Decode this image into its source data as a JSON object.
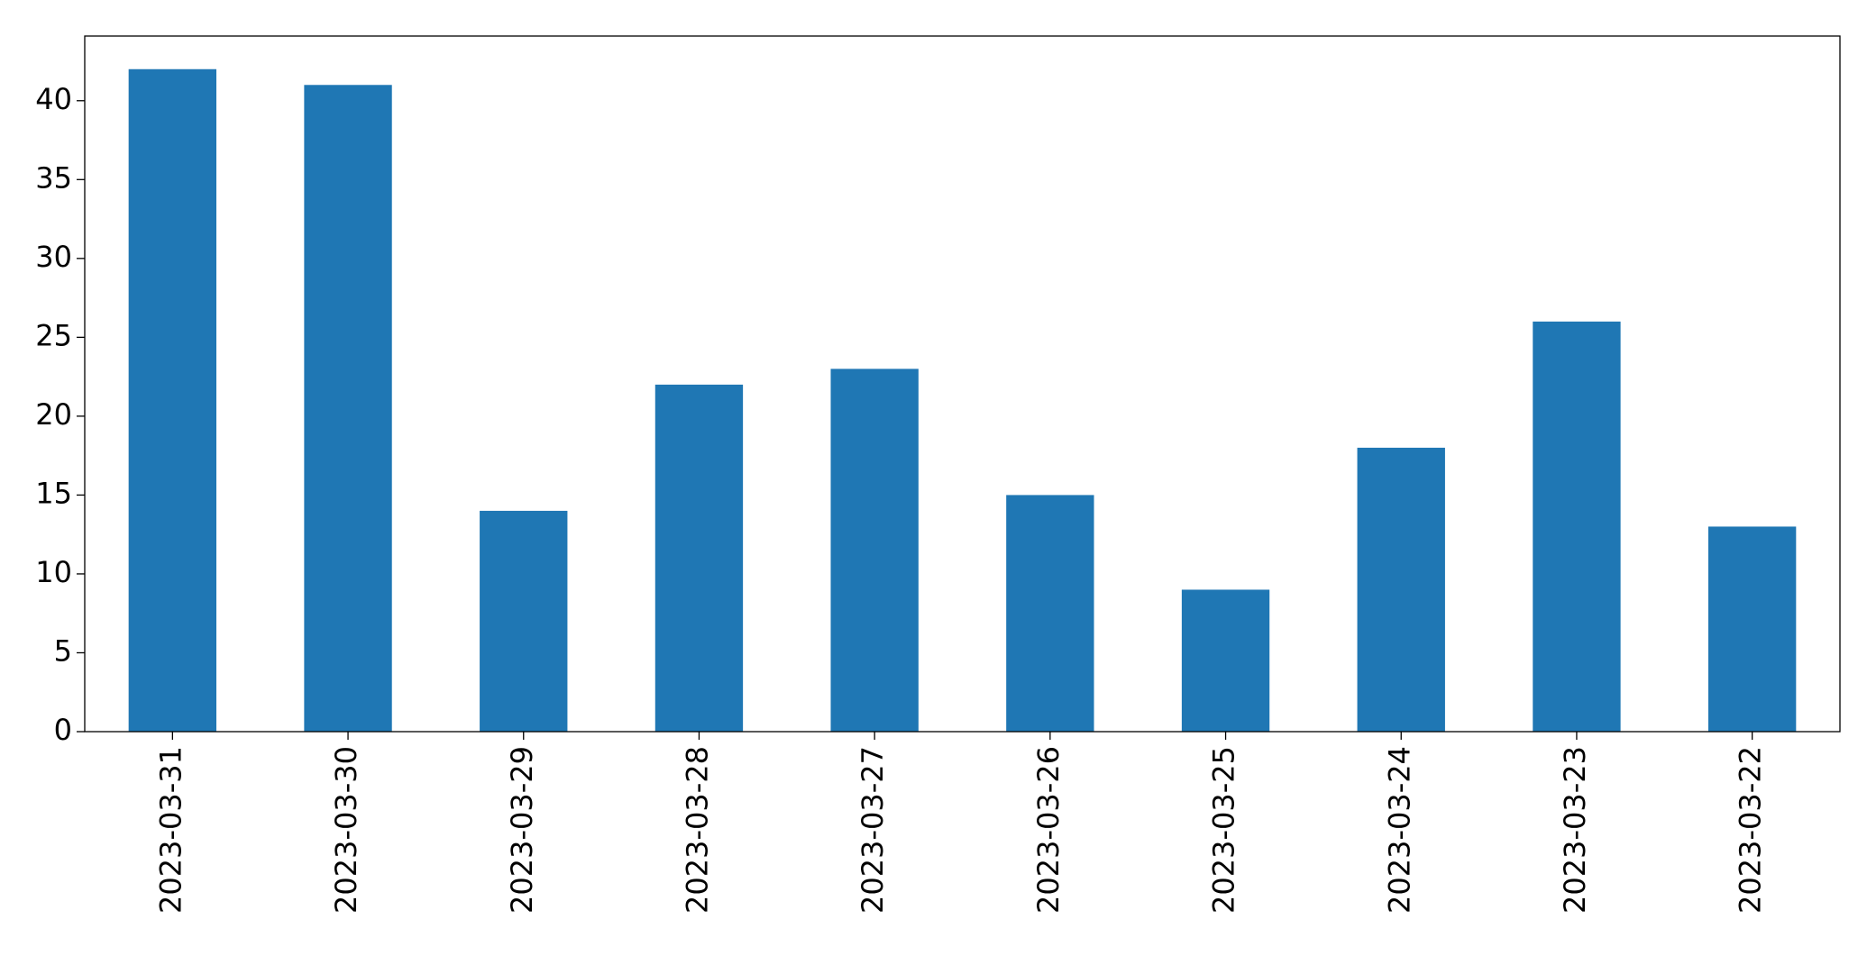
{
  "chart_data": {
    "type": "bar",
    "categories": [
      "2023-03-31",
      "2023-03-30",
      "2023-03-29",
      "2023-03-28",
      "2023-03-27",
      "2023-03-26",
      "2023-03-25",
      "2023-03-24",
      "2023-03-23",
      "2023-03-22"
    ],
    "values": [
      42,
      41,
      14,
      22,
      23,
      15,
      9,
      18,
      26,
      13
    ],
    "color": "#1f77b4",
    "ylim": [
      0,
      44.1
    ],
    "yticks": [
      0,
      5,
      10,
      15,
      20,
      25,
      30,
      35,
      40
    ],
    "grid": false
  }
}
